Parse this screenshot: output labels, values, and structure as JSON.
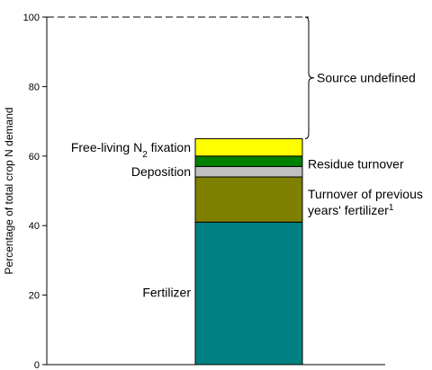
{
  "chart_data": {
    "type": "bar",
    "stacked": true,
    "categories": [
      ""
    ],
    "ylabel": "Percentage of total crop N demand",
    "ylim": [
      0,
      100
    ],
    "yticks": [
      0,
      20,
      40,
      60,
      80,
      100
    ],
    "grid": false,
    "legend": "none",
    "series": [
      {
        "name": "Fertilizer",
        "values": [
          41
        ],
        "color": "#008080"
      },
      {
        "name": "Turnover of previous years' fertilizer",
        "superscript": "1",
        "values": [
          13
        ],
        "color": "#808000"
      },
      {
        "name": "Deposition",
        "values": [
          3
        ],
        "color": "#c0c0c0"
      },
      {
        "name": "Residue turnover",
        "values": [
          3
        ],
        "color": "#008000"
      },
      {
        "name_prefix": "Free-living N",
        "name_subscript": "2",
        "name_suffix": " fixation",
        "values": [
          5
        ],
        "color": "#ffff00"
      }
    ],
    "total_line": {
      "value": 100,
      "style": "dashed"
    },
    "bracket_label": "Source undefined",
    "label_lines": {
      "turnover_line1": "Turnover of previous",
      "turnover_line2": "years' fertilizer"
    }
  }
}
